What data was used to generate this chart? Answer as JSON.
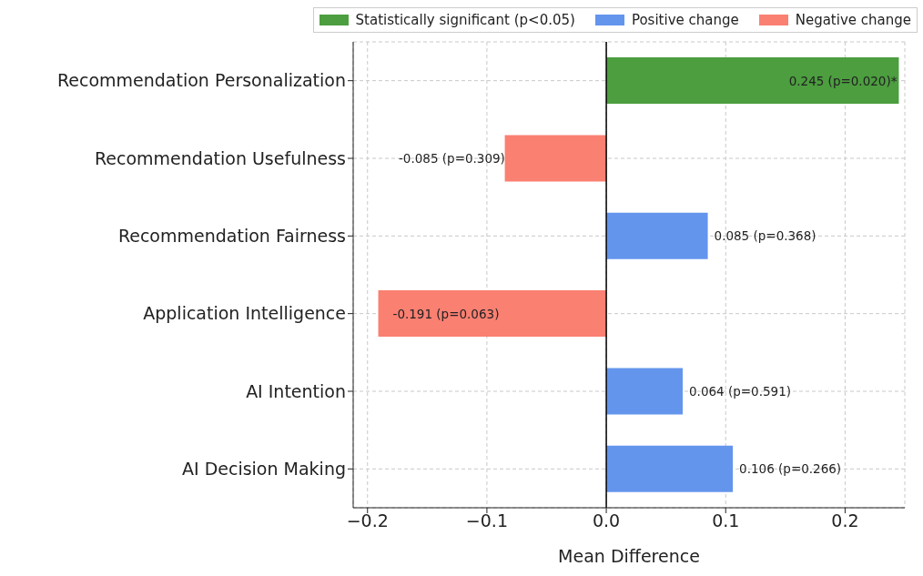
{
  "chart_data": {
    "type": "bar",
    "orientation": "horizontal",
    "stacked": true,
    "xlabel": "Mean Difference",
    "categories": [
      "Recommendation Personalization",
      "Recommendation Usefulness",
      "Recommendation Fairness",
      "Application Intelligence",
      "AI Intention",
      "AI Decision Making"
    ],
    "series": [
      {
        "name": "Statistically significant (p<0.05)",
        "color": "#4c9e3f",
        "values": [
          0.245,
          null,
          null,
          null,
          null,
          null
        ],
        "value_labels": [
          "0.245 (p=0.020)*",
          null,
          null,
          null,
          null,
          null
        ]
      },
      {
        "name": "Positive change",
        "color": "#6495ed",
        "values": [
          null,
          null,
          0.085,
          null,
          0.064,
          0.106
        ],
        "value_labels": [
          null,
          null,
          "0.085 (p=0.368)",
          null,
          "0.064 (p=0.591)",
          "0.106 (p=0.266)"
        ]
      },
      {
        "name": "Negative change",
        "color": "#fa8072",
        "values": [
          null,
          -0.085,
          null,
          -0.191,
          null,
          null
        ],
        "value_labels": [
          null,
          "-0.085 (p=0.309)",
          null,
          "-0.191 (p=0.063)",
          null,
          null
        ]
      }
    ],
    "xlim": [
      -0.212,
      0.25
    ],
    "xticks": [
      {
        "value": -0.2,
        "label": "−0.2"
      },
      {
        "value": -0.1,
        "label": "−0.1"
      },
      {
        "value": 0,
        "label": "0.0"
      },
      {
        "value": 0.1,
        "label": "0.1"
      },
      {
        "value": 0.2,
        "label": "0.2"
      }
    ],
    "ref_lines": [
      {
        "axis": "x",
        "value": 0,
        "color": "#000000",
        "line_style": "solid"
      }
    ],
    "grid": true,
    "legend": "top right"
  }
}
